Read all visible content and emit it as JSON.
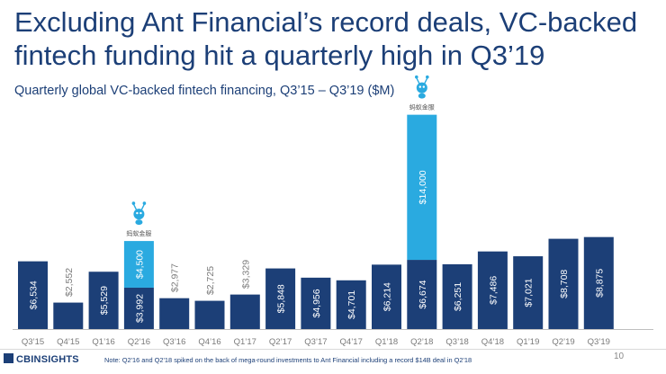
{
  "header": {
    "title": "Excluding Ant Financial’s record deals, VC-backed fintech funding hit a quarterly high in Q3’19",
    "subtitle": "Quarterly global VC-backed fintech financing, Q3’15 – Q3’19 ($M)"
  },
  "chart_data": {
    "type": "bar",
    "stacked": true,
    "title": "",
    "xlabel": "",
    "ylabel": "",
    "ylim": [
      0,
      21000
    ],
    "grid": false,
    "categories": [
      "Q3'15",
      "Q4'15",
      "Q1'16",
      "Q2'16",
      "Q3'16",
      "Q4'16",
      "Q1'17",
      "Q2'17",
      "Q3'17",
      "Q4'17",
      "Q1'18",
      "Q2'18",
      "Q3'18",
      "Q4'18",
      "Q1'19",
      "Q2'19",
      "Q3'19"
    ],
    "series": [
      {
        "color": "#1c3f77",
        "label_color": "#ffffff",
        "values": [
          6534,
          2552,
          5529,
          3992,
          2977,
          2725,
          3329,
          5848,
          4956,
          4701,
          6214,
          6674,
          6251,
          7486,
          7021,
          8708,
          8875
        ],
        "labels": [
          "$6,534",
          "$2,552",
          "$5,529",
          "$3,992",
          "$2,977",
          "$2,725",
          "$3,329",
          "$5,848",
          "$4,956",
          "$4,701",
          "$6,214",
          "$6,674",
          "$6,251",
          "$7,486",
          "$7,021",
          "$8,708",
          "$8,875"
        ]
      },
      {
        "color": "#2aaae0",
        "label_color": "#ffffff",
        "values": [
          0,
          0,
          0,
          4500,
          0,
          0,
          0,
          0,
          0,
          0,
          0,
          14000,
          0,
          0,
          0,
          0,
          0
        ],
        "labels": [
          "",
          "",
          "",
          "$4,500",
          "",
          "",
          "",
          "",
          "",
          "",
          "",
          "$14,000",
          "",
          "",
          "",
          "",
          ""
        ]
      }
    ],
    "outside_label_color": "#7a7a7a",
    "annotations": [
      {
        "category": "Q2'16",
        "icon": "ant-financial-logo-icon",
        "text": "蚂蚁金服"
      },
      {
        "category": "Q2'18",
        "icon": "ant-financial-logo-icon",
        "text": "蚂蚁金服"
      }
    ]
  },
  "footer": {
    "logo_text": "CBINSIGHTS",
    "note": "Note: Q2'16 and Q2'18 spiked on the back of mega-round investments to Ant Financial including a record $14B deal in Q2'18",
    "page_number": "10"
  }
}
